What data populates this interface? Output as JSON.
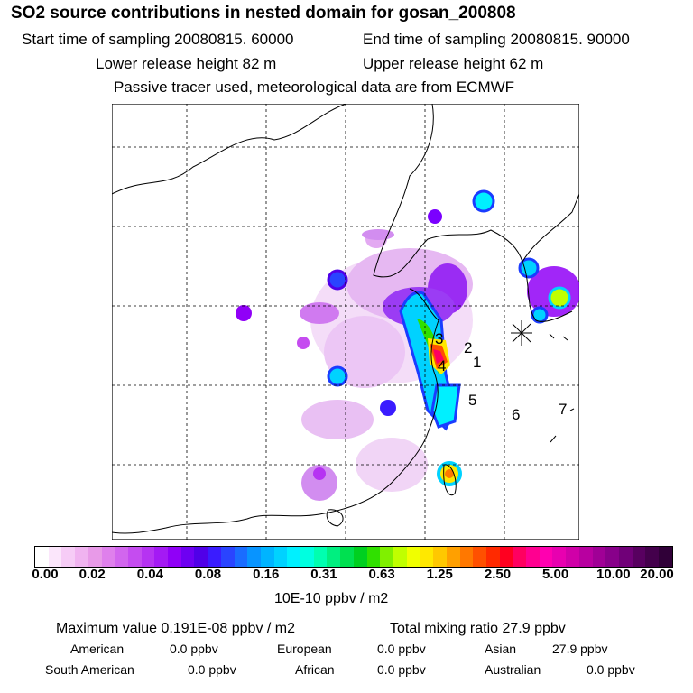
{
  "title": "SO2 source contributions in nested domain for gosan_200808",
  "sampling": {
    "start": "Start time of sampling 20080815. 60000",
    "end": "End time of sampling 20080815. 90000"
  },
  "release": {
    "lower": "Lower release height   82 m",
    "upper": "Upper release height   62 m"
  },
  "note": "Passive tracer used, meteorological data are from ECMWF",
  "map_labels": [
    "1",
    "2",
    "3",
    "4",
    "5",
    "6",
    "7"
  ],
  "colorbar": {
    "ticks": [
      "0.00",
      "0.02",
      "0.04",
      "0.08",
      "0.16",
      "0.31",
      "0.63",
      "1.25",
      "2.50",
      "5.00",
      "10.00",
      "20.00"
    ],
    "colors": [
      "#ffffff",
      "#fbe6fb",
      "#f6ccf6",
      "#f0b3f0",
      "#e89ae8",
      "#df80ec",
      "#d266ee",
      "#c54cf0",
      "#b633f2",
      "#a41af4",
      "#9000f7",
      "#6e00f2",
      "#5000e8",
      "#3a1cff",
      "#2a44ff",
      "#1a6cff",
      "#0894ff",
      "#00b4ff",
      "#00d2ff",
      "#00f0ff",
      "#00ffe0",
      "#00ffb0",
      "#00ef80",
      "#00e050",
      "#00d020",
      "#30e000",
      "#80f000",
      "#c0ff00",
      "#f0ff00",
      "#ffe800",
      "#ffc800",
      "#ffa000",
      "#ff7800",
      "#ff5000",
      "#ff2a00",
      "#ff0020",
      "#ff0060",
      "#ff0090",
      "#ff00b0",
      "#e800b0",
      "#d000a8",
      "#b800a0",
      "#a00096",
      "#88008a",
      "#700078",
      "#580060",
      "#44004c",
      "#300038"
    ],
    "unit": "10E-10 ppbv / m2"
  },
  "stats": {
    "max": "Maximum value  0.191E-08 ppbv / m2",
    "total": "Total mixing ratio       27.9 ppbv"
  },
  "regions": [
    {
      "name": "American",
      "value": "0.0 ppbv"
    },
    {
      "name": "European",
      "value": "0.0 ppbv"
    },
    {
      "name": "Asian",
      "value": "27.9 ppbv"
    },
    {
      "name": "South American",
      "value": "0.0 ppbv"
    },
    {
      "name": "African",
      "value": "0.0 ppbv"
    },
    {
      "name": "Australian",
      "value": "0.0 ppbv"
    }
  ]
}
